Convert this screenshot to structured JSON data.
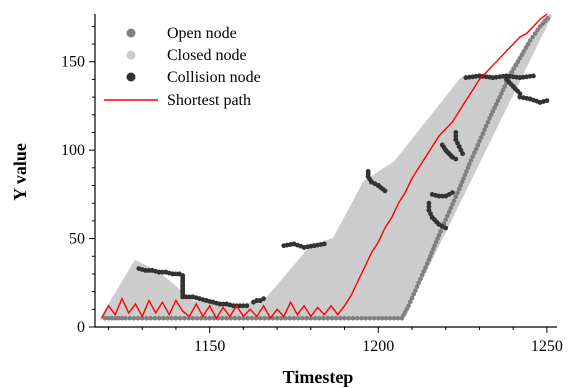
{
  "chart_data": {
    "type": "scatter",
    "xlabel": "Timestep",
    "ylabel": "Y value",
    "xlim": [
      1116,
      1253
    ],
    "ylim": [
      0,
      177
    ],
    "x_ticks": [
      1150,
      1200,
      1250
    ],
    "y_ticks": [
      0,
      50,
      100,
      150
    ],
    "legend_position": "top-left",
    "grid": false,
    "colors": {
      "open": "#808080",
      "closed": "#cccccc",
      "collision": "#333333",
      "path": "#ff0000"
    },
    "series": [
      {
        "name": "Open node",
        "marker": "circle",
        "color": "#808080",
        "segments": [
          {
            "x": [
              1207,
              1209,
              1212,
              1215,
              1218,
              1221,
              1224,
              1227,
              1230,
              1233,
              1236,
              1239,
              1242,
              1245,
              1248,
              1251
            ],
            "y": [
              5,
              12,
              25,
              38,
              52,
              65,
              78,
              92,
              105,
              118,
              130,
              142,
              152,
              162,
              170,
              176
            ]
          },
          {
            "x": [
              1119,
              1122,
              1125,
              1130,
              1140,
              1150,
              1160,
              1170,
              1180,
              1190,
              1200,
              1207
            ],
            "y": [
              5,
              5,
              5,
              5,
              5,
              5,
              5,
              5,
              5,
              5,
              5,
              5
            ]
          }
        ]
      },
      {
        "name": "Closed node",
        "marker": "circle",
        "color": "#cccccc",
        "region": [
          [
            1118,
            5
          ],
          [
            1128,
            37
          ],
          [
            1135,
            30
          ],
          [
            1145,
            14
          ],
          [
            1160,
            12
          ],
          [
            1167,
            16
          ],
          [
            1172,
            27
          ],
          [
            1180,
            45
          ],
          [
            1187,
            50
          ],
          [
            1196,
            82
          ],
          [
            1205,
            93
          ],
          [
            1225,
            141
          ],
          [
            1238,
            141
          ],
          [
            1250,
            176
          ],
          [
            1251,
            176
          ],
          [
            1207,
            5
          ]
        ]
      },
      {
        "name": "Collision node",
        "marker": "circle",
        "color": "#333333",
        "segments": [
          {
            "x": [
              1129,
              1131,
              1133,
              1135,
              1137,
              1139,
              1141,
              1142
            ],
            "y": [
              33,
              32,
              32,
              31,
              31,
              30,
              30,
              29
            ]
          },
          {
            "x": [
              1142,
              1142,
              1142,
              1142,
              1142
            ],
            "y": [
              29,
              26,
              23,
              20,
              17
            ]
          },
          {
            "x": [
              1143,
              1145,
              1147,
              1149,
              1151,
              1153,
              1155,
              1157,
              1159,
              1161
            ],
            "y": [
              17,
              17,
              16,
              15,
              14,
              13,
              13,
              12,
              12,
              12
            ]
          },
          {
            "x": [
              1163,
              1164,
              1165,
              1166
            ],
            "y": [
              14,
              15,
              15,
              16
            ]
          },
          {
            "x": [
              1172,
              1175,
              1178,
              1181,
              1184
            ],
            "y": [
              46,
              47,
              45,
              46,
              47
            ]
          },
          {
            "x": [
              1197,
              1197,
              1198,
              1200,
              1202
            ],
            "y": [
              88,
              85,
              82,
              80,
              77
            ]
          },
          {
            "x": [
              1215,
              1215,
              1216,
              1218,
              1220
            ],
            "y": [
              70,
              66,
              62,
              58,
              56
            ]
          },
          {
            "x": [
              1216,
              1218,
              1220,
              1222
            ],
            "y": [
              75,
              74,
              74,
              76
            ]
          },
          {
            "x": [
              1219,
              1220,
              1221,
              1222,
              1223
            ],
            "y": [
              103,
              100,
              98,
              96,
              95
            ]
          },
          {
            "x": [
              1223,
              1223,
              1224,
              1225
            ],
            "y": [
              110,
              106,
              102,
              98
            ]
          },
          {
            "x": [
              1226,
              1230,
              1234,
              1238,
              1242,
              1246
            ],
            "y": [
              141,
              142,
              141,
              142,
              141,
              142
            ]
          },
          {
            "x": [
              1242,
              1245,
              1248,
              1250
            ],
            "y": [
              130,
              129,
              127,
              128
            ]
          },
          {
            "x": [
              1238,
              1240,
              1242
            ],
            "y": [
              140,
              136,
              132
            ]
          }
        ]
      },
      {
        "name": "Shortest path",
        "marker": "line",
        "color": "#ff0000",
        "x": [
          1118,
          1120,
          1122,
          1124,
          1126,
          1128,
          1130,
          1132,
          1134,
          1136,
          1138,
          1140,
          1142,
          1144,
          1146,
          1148,
          1150,
          1152,
          1154,
          1156,
          1158,
          1160,
          1162,
          1164,
          1166,
          1168,
          1170,
          1172,
          1174,
          1176,
          1178,
          1180,
          1182,
          1184,
          1186,
          1188,
          1190,
          1192,
          1194,
          1196,
          1198,
          1200,
          1202,
          1204,
          1206,
          1208,
          1210,
          1212,
          1214,
          1216,
          1218,
          1220,
          1222,
          1224,
          1226,
          1228,
          1230,
          1232,
          1234,
          1236,
          1238,
          1240,
          1242,
          1244,
          1246,
          1248,
          1250
        ],
        "y": [
          5,
          12,
          7,
          16,
          8,
          13,
          6,
          15,
          8,
          14,
          7,
          15,
          9,
          6,
          13,
          6,
          12,
          5,
          11,
          6,
          12,
          6,
          10,
          6,
          12,
          5,
          10,
          6,
          14,
          7,
          12,
          6,
          11,
          7,
          12,
          7,
          12,
          18,
          26,
          34,
          42,
          48,
          56,
          62,
          70,
          76,
          84,
          90,
          96,
          102,
          108,
          112,
          116,
          122,
          128,
          134,
          140,
          144,
          148,
          152,
          156,
          160,
          164,
          166,
          170,
          174,
          177
        ]
      }
    ]
  }
}
